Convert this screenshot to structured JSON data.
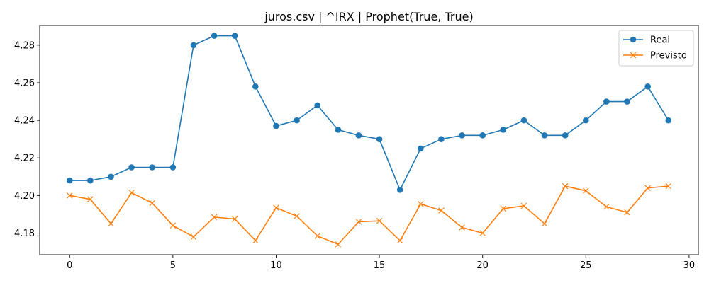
{
  "chart_data": {
    "type": "line",
    "title": "juros.csv | ^IRX | Prophet(True, True)",
    "xlabel": "",
    "ylabel": "",
    "xlim": [
      -1.45,
      30.45
    ],
    "ylim": [
      4.1685,
      4.2905
    ],
    "xticks": [
      0,
      5,
      10,
      15,
      20,
      25,
      30
    ],
    "yticks": [
      4.18,
      4.2,
      4.22,
      4.24,
      4.26,
      4.28
    ],
    "ytick_labels": [
      "4.18",
      "4.20",
      "4.22",
      "4.24",
      "4.26",
      "4.28"
    ],
    "grid": false,
    "legend_position": "top-right",
    "x": [
      0,
      1,
      2,
      3,
      4,
      5,
      6,
      7,
      8,
      9,
      10,
      11,
      12,
      13,
      14,
      15,
      16,
      17,
      18,
      19,
      20,
      21,
      22,
      23,
      24,
      25,
      26,
      27,
      28,
      29
    ],
    "series": [
      {
        "name": "Real",
        "color": "#1f77b4",
        "marker": "circle",
        "values": [
          4.208,
          4.208,
          4.21,
          4.215,
          4.215,
          4.215,
          4.28,
          4.285,
          4.285,
          4.258,
          4.237,
          4.24,
          4.248,
          4.235,
          4.232,
          4.23,
          4.203,
          4.225,
          4.23,
          4.232,
          4.232,
          4.235,
          4.24,
          4.232,
          4.232,
          4.24,
          4.25,
          4.25,
          4.258,
          4.24
        ]
      },
      {
        "name": "Previsto",
        "color": "#ff7f0e",
        "marker": "x",
        "values": [
          4.2,
          4.198,
          4.185,
          4.2015,
          4.196,
          4.184,
          4.178,
          4.1885,
          4.1875,
          4.176,
          4.1935,
          4.189,
          4.1785,
          4.174,
          4.186,
          4.1865,
          4.176,
          4.1955,
          4.192,
          4.183,
          4.18,
          4.193,
          4.1945,
          4.185,
          4.205,
          4.2025,
          4.194,
          4.191,
          4.204,
          4.205
        ]
      }
    ]
  }
}
